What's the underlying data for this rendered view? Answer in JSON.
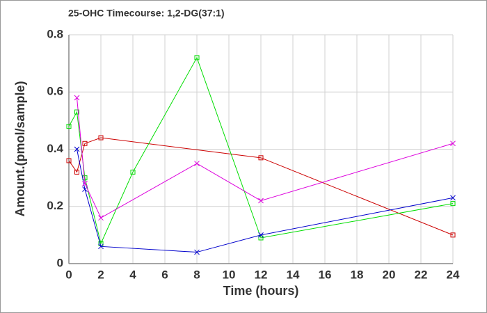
{
  "chart_data": {
    "type": "line",
    "title": "25-OHC Timecourse: 1,2-DG(37:1)",
    "xlabel": "Time (hours)",
    "ylabel": "Amount.(pmol/sample)",
    "xlim": [
      0,
      24
    ],
    "xticks": [
      0,
      2,
      4,
      6,
      8,
      10,
      12,
      14,
      16,
      18,
      20,
      22,
      24
    ],
    "ylim": [
      0,
      0.8
    ],
    "yticks": [
      0,
      0.2,
      0.4,
      0.6,
      0.8
    ],
    "grid": true,
    "series": [
      {
        "color": "#cc0000",
        "marker": "square",
        "x": [
          0,
          0.5,
          1,
          2,
          12,
          24
        ],
        "values": [
          0.36,
          0.32,
          0.42,
          0.44,
          0.37,
          0.1
        ]
      },
      {
        "color": "#00dd00",
        "marker": "square",
        "x": [
          0,
          0.5,
          1,
          2,
          4,
          8,
          12,
          24
        ],
        "values": [
          0.48,
          0.53,
          0.3,
          0.07,
          0.32,
          0.72,
          0.09,
          0.21
        ]
      },
      {
        "color": "#0000cc",
        "marker": "x",
        "x": [
          0.5,
          1,
          2,
          8,
          12,
          24
        ],
        "values": [
          0.4,
          0.26,
          0.06,
          0.04,
          0.1,
          0.23
        ]
      },
      {
        "color": "#dd00dd",
        "marker": "x",
        "x": [
          0.5,
          1,
          2,
          8,
          12,
          24
        ],
        "values": [
          0.58,
          0.28,
          0.16,
          0.35,
          0.22,
          0.42
        ]
      }
    ]
  }
}
